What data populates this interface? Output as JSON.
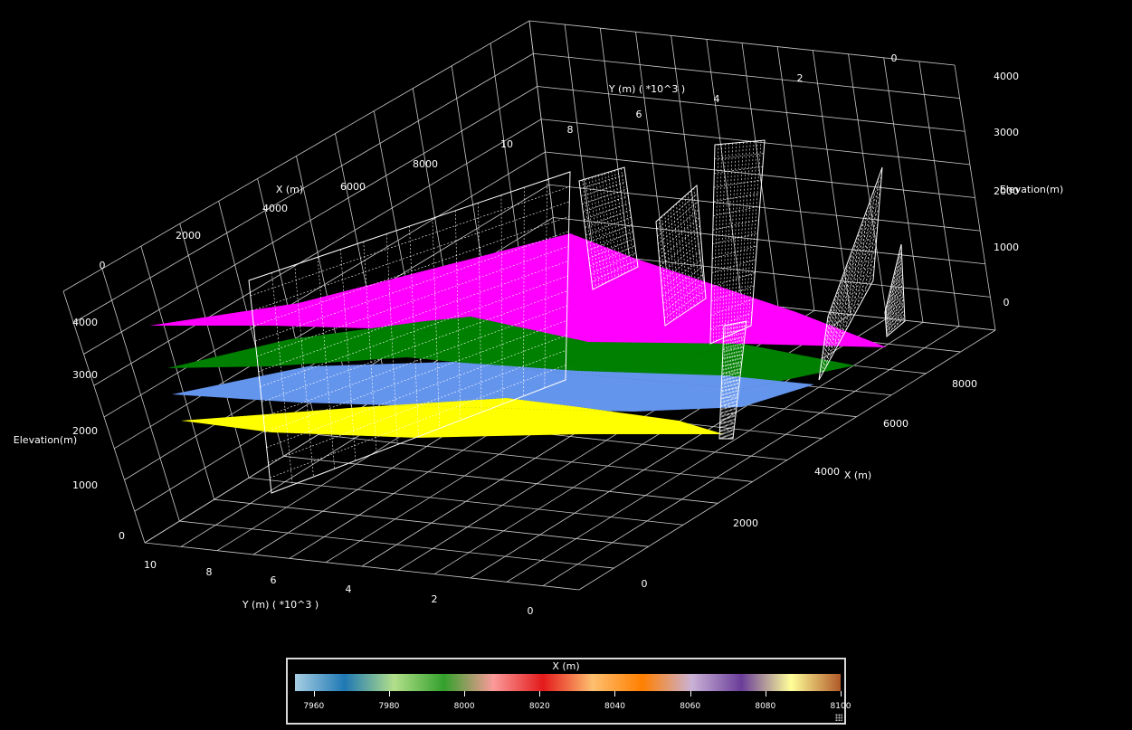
{
  "chart_data": {
    "type": "3d-surface",
    "axes": {
      "x": {
        "label": "X (m)",
        "ticks": [
          "0",
          "2000",
          "4000",
          "6000",
          "8000"
        ]
      },
      "y": {
        "label": "Y (m) ( *10^3 )",
        "ticks": [
          "0",
          "2",
          "4",
          "6",
          "8",
          "10"
        ]
      },
      "z": {
        "label": "Elevation(m)",
        "ticks": [
          "0",
          "1000",
          "2000",
          "3000",
          "4000"
        ]
      }
    },
    "series": [
      {
        "color": "#ff00ff",
        "elevation": 3600
      },
      {
        "color": "#008000",
        "elevation": 2950
      },
      {
        "color": "#6495ed",
        "elevation": 2450
      },
      {
        "color": "#ffff00",
        "elevation": 1850
      }
    ],
    "fault_planes_color": "#ffffff",
    "grid": true,
    "legend": {
      "title": "X (m)",
      "placement": "bottom-center",
      "range": [
        7955,
        8100
      ],
      "ticks": [
        "7960",
        "7980",
        "8000",
        "8020",
        "8040",
        "8060",
        "8080",
        "8100"
      ],
      "colors": [
        "#a6cee3",
        "#1f78b4",
        "#b2df8a",
        "#33a02c",
        "#fb9a99",
        "#e31a1c",
        "#fdbf6f",
        "#ff7f00",
        "#cab2d6",
        "#6a3d9a",
        "#ffff99",
        "#b15928"
      ]
    }
  }
}
